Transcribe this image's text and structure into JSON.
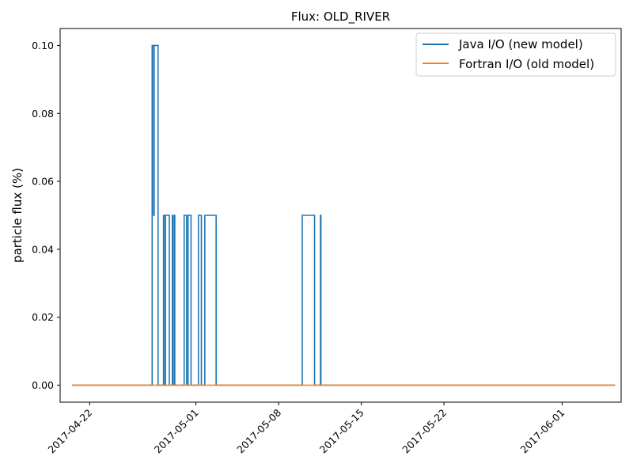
{
  "chart_data": {
    "type": "line",
    "title": "Flux: OLD_RIVER",
    "xlabel": "",
    "ylabel": "particle flux (%)",
    "xlim": [
      "2017-04-19T12:00",
      "2017-06-06T00:00"
    ],
    "ylim": [
      -0.005,
      0.105
    ],
    "x_ticks": [
      "2017-04-22",
      "2017-05-01",
      "2017-05-08",
      "2017-05-15",
      "2017-05-22",
      "2017-06-01"
    ],
    "y_ticks": [
      "0.00",
      "0.02",
      "0.04",
      "0.06",
      "0.08",
      "0.10"
    ],
    "grid": false,
    "legend_position": "top-right",
    "series": [
      {
        "name": "Java I/O (new model)",
        "color": "#1f77b4",
        "drawstyle": "steps",
        "points": [
          [
            "2017-04-20T12:00",
            0
          ],
          [
            "2017-04-27T07:00",
            0
          ],
          [
            "2017-04-27T07:00",
            0.1
          ],
          [
            "2017-04-27T10:00",
            0.1
          ],
          [
            "2017-04-27T10:00",
            0.05
          ],
          [
            "2017-04-27T11:00",
            0.05
          ],
          [
            "2017-04-27T11:00",
            0.1
          ],
          [
            "2017-04-27T19:00",
            0.1
          ],
          [
            "2017-04-27T19:00",
            0
          ],
          [
            "2017-04-28T06:00",
            0
          ],
          [
            "2017-04-28T06:00",
            0.05
          ],
          [
            "2017-04-28T09:00",
            0.05
          ],
          [
            "2017-04-28T09:00",
            0
          ],
          [
            "2017-04-28T10:00",
            0
          ],
          [
            "2017-04-28T10:00",
            0.05
          ],
          [
            "2017-04-28T18:00",
            0.05
          ],
          [
            "2017-04-28T18:00",
            0
          ],
          [
            "2017-04-29T00:00",
            0
          ],
          [
            "2017-04-29T00:00",
            0.05
          ],
          [
            "2017-04-29T01:00",
            0.05
          ],
          [
            "2017-04-29T01:00",
            0
          ],
          [
            "2017-04-29T04:00",
            0
          ],
          [
            "2017-04-29T04:00",
            0.05
          ],
          [
            "2017-04-29T05:00",
            0.05
          ],
          [
            "2017-04-29T05:00",
            0
          ],
          [
            "2017-04-30T00:00",
            0
          ],
          [
            "2017-04-30T00:00",
            0.05
          ],
          [
            "2017-04-30T05:00",
            0.05
          ],
          [
            "2017-04-30T05:00",
            0
          ],
          [
            "2017-04-30T08:00",
            0
          ],
          [
            "2017-04-30T08:00",
            0.05
          ],
          [
            "2017-04-30T14:00",
            0.05
          ],
          [
            "2017-04-30T14:00",
            0
          ],
          [
            "2017-05-01T05:00",
            0
          ],
          [
            "2017-05-01T05:00",
            0.05
          ],
          [
            "2017-05-01T11:00",
            0.05
          ],
          [
            "2017-05-01T11:00",
            0
          ],
          [
            "2017-05-01T18:00",
            0
          ],
          [
            "2017-05-01T18:00",
            0.05
          ],
          [
            "2017-05-02T17:00",
            0.05
          ],
          [
            "2017-05-02T17:00",
            0
          ],
          [
            "2017-05-10T00:00",
            0
          ],
          [
            "2017-05-10T00:00",
            0.05
          ],
          [
            "2017-05-11T01:00",
            0.05
          ],
          [
            "2017-05-11T01:00",
            0
          ],
          [
            "2017-05-11T13:00",
            0
          ],
          [
            "2017-05-11T13:00",
            0.05
          ],
          [
            "2017-05-11T14:00",
            0.05
          ],
          [
            "2017-05-11T14:00",
            0
          ],
          [
            "2017-06-05T12:00",
            0
          ]
        ]
      },
      {
        "name": "Fortran I/O (old model)",
        "color": "#ff7f0e",
        "drawstyle": "default",
        "points": [
          [
            "2017-04-20T12:00",
            0
          ],
          [
            "2017-06-05T12:00",
            0
          ]
        ]
      }
    ]
  }
}
